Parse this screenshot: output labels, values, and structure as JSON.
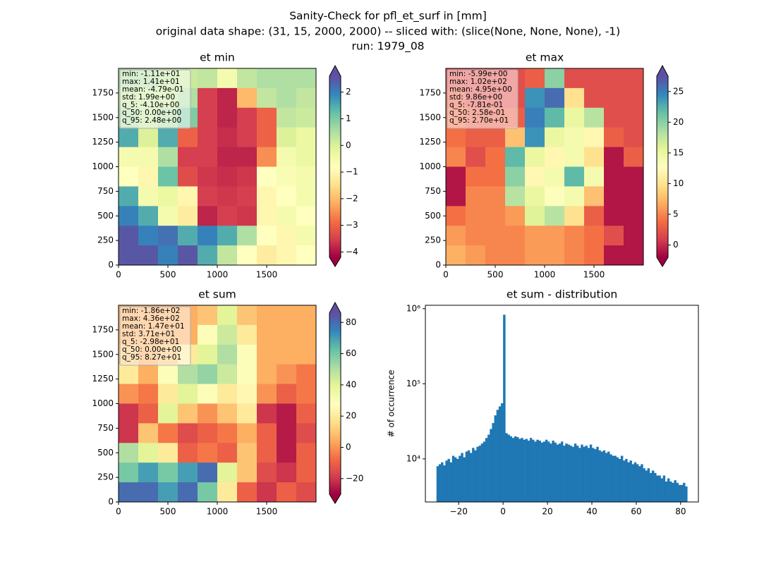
{
  "title": [
    "Sanity-Check for pfl_et_surf in [mm]",
    "original data shape: (31, 15, 2000, 2000) -- sliced with: (slice(None, None, None), -1)",
    "run: 1979_08"
  ],
  "chart_data": [
    {
      "type": "heatmap",
      "title": "et min",
      "colormap": "Spectral",
      "xlim": [
        0,
        2000
      ],
      "ylim": [
        0,
        2000
      ],
      "xticks": [
        0,
        500,
        1000,
        1500
      ],
      "yticks": [
        0,
        250,
        500,
        750,
        1000,
        1250,
        1500,
        1750
      ],
      "clim": [
        -4.2,
        2.6
      ],
      "cticks": [
        {
          "value": -4,
          "label": "−4"
        },
        {
          "value": -3,
          "label": "−3"
        },
        {
          "value": -2,
          "label": "−2"
        },
        {
          "value": -1,
          "label": "−1"
        },
        0,
        1,
        2
      ],
      "stats": [
        "min: -1.11e+01",
        "max: 1.41e+01",
        "mean: -4.79e-01",
        "std: 1.99e+00",
        "q_5: -4.10e+00",
        "q_50: 0.00e+00",
        "q_95: 2.48e+00"
      ],
      "z": [
        [
          0.5,
          0.5,
          0.3,
          0.2,
          0.3,
          -0.5,
          0.3,
          0.5,
          0.5,
          0.5
        ],
        [
          0.3,
          0.2,
          0.2,
          0.5,
          -3.5,
          -3.8,
          -2,
          0.3,
          0.5,
          0.3
        ],
        [
          0.5,
          0.3,
          0.5,
          1,
          -3.5,
          -3.8,
          -3.5,
          -3,
          0.3,
          0.2
        ],
        [
          1.5,
          0,
          1.5,
          -3,
          -3.5,
          -3.7,
          -3.5,
          -3,
          0,
          -0.3
        ],
        [
          -0.5,
          -0.5,
          0.5,
          -3.5,
          -3.5,
          -3.8,
          -3.8,
          -2.5,
          -0.5,
          -0.3
        ],
        [
          -0.8,
          -1,
          1.2,
          -3.3,
          -3.6,
          -3.7,
          -3.6,
          -0.8,
          -0.6,
          -0.5
        ],
        [
          1.5,
          -0.5,
          -0.3,
          -1,
          -3.5,
          -3.6,
          -3.5,
          -1,
          -0.8,
          -0.5
        ],
        [
          2,
          1.5,
          -0.5,
          -1.2,
          -3.8,
          -3.5,
          -3.6,
          -1,
          -0.5,
          -0.8
        ],
        [
          2.5,
          2,
          2.2,
          1.5,
          2,
          1.5,
          0.5,
          -0.8,
          -1,
          -0.5
        ],
        [
          2.5,
          2.5,
          2,
          2.5,
          1.5,
          0.3,
          -0.8,
          -1.2,
          -1,
          -0.8
        ]
      ]
    },
    {
      "type": "heatmap",
      "title": "et max",
      "colormap": "Spectral",
      "xlim": [
        0,
        2000
      ],
      "ylim": [
        0,
        2000
      ],
      "xticks": [
        0,
        500,
        1000,
        1500
      ],
      "yticks": [
        0,
        250,
        500,
        750,
        1000,
        1250,
        1500,
        1750
      ],
      "clim": [
        -2,
        27.5
      ],
      "cticks": [
        0,
        5,
        10,
        15,
        20,
        25
      ],
      "stats": [
        "min: -5.99e+00",
        "max: 1.02e+02",
        "mean: 4.95e+00",
        "std: 9.86e+00",
        "q_5: -7.81e-01",
        "q_50: 2.58e-01",
        "q_95: 2.70e+01"
      ],
      "z": [
        [
          2,
          2,
          2,
          2,
          3,
          20,
          2,
          2,
          2,
          2
        ],
        [
          3,
          2,
          2,
          2,
          24,
          26,
          10,
          2,
          2,
          2
        ],
        [
          4,
          3,
          3,
          3,
          25,
          22,
          15,
          18,
          2,
          2
        ],
        [
          4,
          3,
          3,
          8,
          24,
          15,
          14,
          12,
          3,
          2
        ],
        [
          5,
          2,
          4,
          22,
          15,
          12,
          14,
          10,
          -1,
          3
        ],
        [
          -1,
          4,
          4,
          20,
          12,
          14,
          22,
          14,
          -1,
          -1
        ],
        [
          -1,
          5,
          5,
          18,
          15,
          13,
          14,
          8,
          -1,
          -1
        ],
        [
          4,
          5,
          5,
          6,
          16,
          18,
          10,
          3,
          -1,
          -1
        ],
        [
          6,
          5,
          5,
          5,
          6,
          6,
          5,
          4,
          2,
          -1
        ],
        [
          7,
          6,
          5,
          5,
          6,
          6,
          5,
          4,
          -1,
          -1
        ]
      ]
    },
    {
      "type": "heatmap",
      "title": "et sum",
      "colormap": "Spectral",
      "xlim": [
        0,
        2000
      ],
      "ylim": [
        0,
        2000
      ],
      "xticks": [
        0,
        500,
        1000,
        1500
      ],
      "yticks": [
        0,
        250,
        500,
        750,
        1000,
        1250,
        1500,
        1750
      ],
      "clim": [
        -30,
        86
      ],
      "cticks": [
        {
          "value": -20,
          "label": "−20"
        },
        0,
        20,
        40,
        60,
        80
      ],
      "stats": [
        "min: -1.86e+02",
        "max: 4.36e+02",
        "mean: 1.47e+01",
        "std: 3.71e+01",
        "q_5: -2.98e+01",
        "q_50: 0.00e+00",
        "q_95: 8.27e+01"
      ],
      "z": [
        [
          5,
          5,
          5,
          5,
          10,
          40,
          10,
          5,
          5,
          5
        ],
        [
          5,
          5,
          5,
          5,
          30,
          45,
          20,
          5,
          5,
          5
        ],
        [
          10,
          5,
          10,
          20,
          40,
          50,
          30,
          5,
          5,
          5
        ],
        [
          20,
          5,
          30,
          50,
          55,
          45,
          30,
          5,
          0,
          -5
        ],
        [
          0,
          -5,
          20,
          40,
          30,
          20,
          25,
          0,
          -10,
          -5
        ],
        [
          -20,
          -10,
          40,
          10,
          0,
          10,
          20,
          -20,
          -25,
          -10
        ],
        [
          -20,
          10,
          -5,
          -15,
          -10,
          -5,
          5,
          -10,
          -25,
          -15
        ],
        [
          50,
          40,
          20,
          -10,
          -5,
          -10,
          10,
          -10,
          -25,
          -10
        ],
        [
          60,
          70,
          60,
          70,
          80,
          40,
          10,
          -15,
          -20,
          -10
        ],
        [
          80,
          80,
          70,
          80,
          60,
          20,
          -10,
          -20,
          -10,
          -15
        ]
      ]
    },
    {
      "type": "histogram",
      "title": "et sum - distribution",
      "ylabel": "# of occurrence",
      "color": "#1f77b4",
      "log_y": true,
      "xlim": [
        -35,
        88
      ],
      "xticks": [
        {
          "value": -20,
          "label": "−20"
        },
        0,
        20,
        40,
        60,
        80
      ],
      "ylim": [
        2670,
        1110000
      ],
      "yticks": [
        {
          "value": 10000,
          "label": "10⁴"
        },
        {
          "value": 100000,
          "label": "10⁵"
        },
        {
          "value": 1000000,
          "label": "10⁶"
        }
      ],
      "bins": [
        -30,
        -29,
        -28,
        -27,
        -26,
        -25,
        -24,
        -23,
        -22,
        -21,
        -20,
        -19,
        -18,
        -17,
        -16,
        -15,
        -14,
        -13,
        -12,
        -11,
        -10,
        -9,
        -8,
        -7,
        -6,
        -5,
        -4,
        -3,
        -2,
        -1,
        0,
        1,
        2,
        3,
        4,
        5,
        6,
        7,
        8,
        9,
        10,
        11,
        12,
        13,
        14,
        15,
        16,
        17,
        18,
        19,
        20,
        21,
        22,
        23,
        24,
        25,
        26,
        27,
        28,
        29,
        30,
        31,
        32,
        33,
        34,
        35,
        36,
        37,
        38,
        39,
        40,
        41,
        42,
        43,
        44,
        45,
        46,
        47,
        48,
        49,
        50,
        51,
        52,
        53,
        54,
        55,
        56,
        57,
        58,
        59,
        60,
        61,
        62,
        63,
        64,
        65,
        66,
        67,
        68,
        69,
        70,
        71,
        72,
        73,
        74,
        75,
        76,
        77,
        78,
        79,
        80,
        81,
        82,
        83
      ],
      "counts": [
        8000,
        8500,
        9000,
        8200,
        9500,
        10000,
        9000,
        11000,
        10500,
        10000,
        11000,
        12000,
        10500,
        12500,
        13000,
        12000,
        14000,
        13000,
        14500,
        15000,
        16000,
        17000,
        19000,
        21000,
        25000,
        30000,
        38000,
        45000,
        50000,
        55000,
        830000,
        22000,
        21000,
        20000,
        19000,
        20000,
        19500,
        18500,
        19000,
        18000,
        18500,
        17500,
        19000,
        18000,
        17000,
        18000,
        17500,
        16500,
        17000,
        18000,
        17000,
        16000,
        17500,
        16500,
        15500,
        16000,
        17000,
        15000,
        16000,
        15500,
        15000,
        14500,
        16000,
        15000,
        14000,
        15500,
        14500,
        15000,
        14000,
        15500,
        14000,
        13500,
        14500,
        13000,
        12500,
        13000,
        12000,
        12500,
        11500,
        11000,
        11000,
        10500,
        10000,
        11000,
        9500,
        10000,
        9000,
        9500,
        8500,
        9000,
        8500,
        8000,
        8500,
        7500,
        7000,
        7500,
        6500,
        7000,
        6500,
        6000,
        6000,
        5500,
        6000,
        5000,
        5500,
        5000,
        4800,
        5200,
        4800,
        4500,
        4500,
        4800,
        4300
      ]
    }
  ]
}
